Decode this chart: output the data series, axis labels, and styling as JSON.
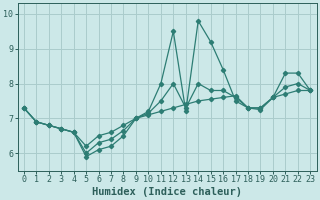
{
  "xlabel": "Humidex (Indice chaleur)",
  "x_values": [
    0,
    1,
    2,
    3,
    4,
    5,
    6,
    7,
    8,
    9,
    10,
    11,
    12,
    13,
    14,
    15,
    16,
    17,
    18,
    19,
    20,
    21,
    22,
    23
  ],
  "y_values": [
    7.3,
    6.9,
    6.8,
    6.7,
    6.6,
    5.9,
    6.1,
    6.2,
    6.5,
    7.0,
    7.2,
    8.0,
    9.5,
    7.2,
    9.8,
    9.2,
    8.4,
    7.5,
    7.3,
    7.25,
    7.6,
    8.3,
    8.3,
    7.8
  ],
  "y_values2": [
    7.3,
    6.9,
    6.8,
    6.7,
    6.6,
    6.2,
    6.5,
    6.6,
    6.8,
    7.0,
    7.1,
    7.2,
    7.3,
    7.4,
    7.5,
    7.55,
    7.6,
    7.65,
    7.3,
    7.3,
    7.6,
    7.7,
    7.8,
    7.8
  ],
  "y_values3": [
    7.3,
    6.9,
    6.8,
    6.7,
    6.6,
    6.0,
    6.3,
    6.4,
    6.65,
    7.0,
    7.15,
    7.5,
    8.0,
    7.3,
    8.0,
    7.8,
    7.8,
    7.6,
    7.3,
    7.3,
    7.6,
    7.9,
    8.0,
    7.8
  ],
  "line_color": "#2d7d74",
  "marker_color": "#2d7d74",
  "background_color": "#cce8e8",
  "grid_color": "#aacccc",
  "ylim": [
    5.5,
    10.3
  ],
  "xlim": [
    -0.5,
    23.5
  ],
  "yticks": [
    6,
    7,
    8,
    9,
    10
  ],
  "xticks": [
    0,
    1,
    2,
    3,
    4,
    5,
    6,
    7,
    8,
    9,
    10,
    11,
    12,
    13,
    14,
    15,
    16,
    17,
    18,
    19,
    20,
    21,
    22,
    23
  ],
  "figsize": [
    3.2,
    2.0
  ],
  "dpi": 100,
  "tick_color": "#2d5f5a",
  "axis_color": "#2d5f5a",
  "label_fontsize": 7.5,
  "tick_fontsize": 6.0
}
